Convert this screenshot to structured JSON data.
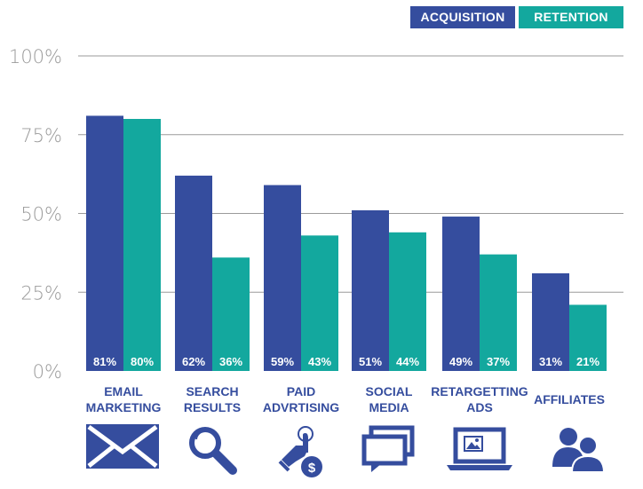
{
  "chart_data": {
    "type": "bar",
    "categories": [
      [
        "EMAIL",
        "MARKETING"
      ],
      [
        "SEARCH",
        "RESULTS"
      ],
      [
        "PAID",
        "ADVRTISING"
      ],
      [
        "SOCIAL",
        "MEDIA"
      ],
      [
        "RETARGETTING",
        "ADS"
      ],
      [
        "AFFILIATES"
      ]
    ],
    "series": [
      {
        "name": "ACQUISITION",
        "color": "#354d9e",
        "values": [
          81,
          62,
          59,
          51,
          49,
          31
        ],
        "labels": [
          "81%",
          "62%",
          "59%",
          "51%",
          "49%",
          "31%"
        ]
      },
      {
        "name": "RETENTION",
        "color": "#13a89e",
        "values": [
          80,
          36,
          43,
          44,
          37,
          21
        ],
        "labels": [
          "80%",
          "36%",
          "43%",
          "44%",
          "37%",
          "21%"
        ]
      }
    ],
    "ylim": [
      0,
      100
    ],
    "yticks": [
      0,
      25,
      50,
      75,
      100
    ],
    "ytick_labels": [
      "0%",
      "25%",
      "50%",
      "75%",
      "100%"
    ],
    "grid": true,
    "legend": "top-right",
    "icons": [
      "envelope-icon",
      "magnifier-icon",
      "hand-coin-icon",
      "chat-bubbles-icon",
      "laptop-image-icon",
      "users-icon"
    ],
    "label_color": "#354d9e",
    "grid_color": "#9a9a9a",
    "tick_color": "#9a9a9a"
  }
}
